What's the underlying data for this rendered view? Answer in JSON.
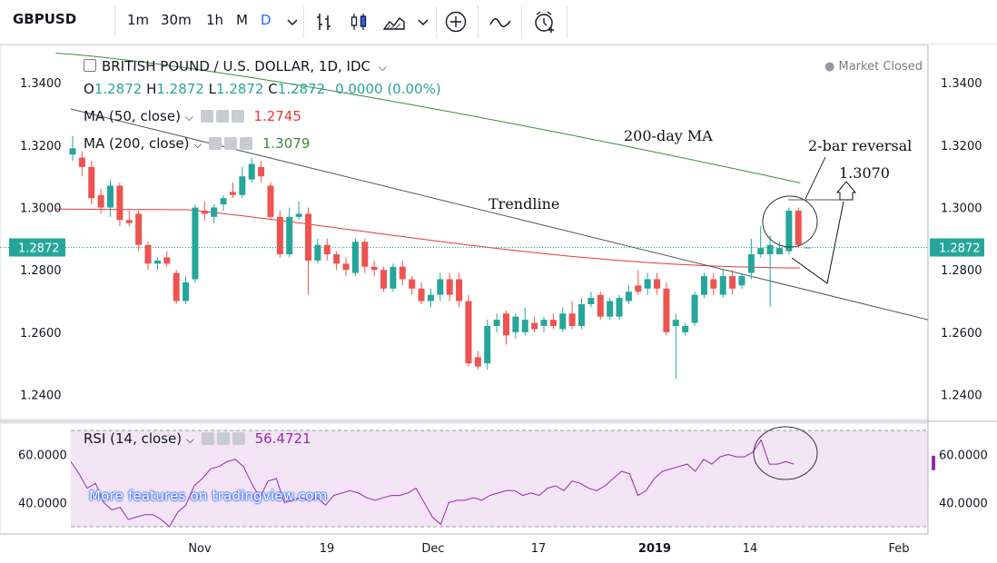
{
  "toolbar": {
    "symbol": "GBPUSD",
    "intervals": [
      "1m",
      "30m",
      "1h",
      "M",
      "D"
    ],
    "active_interval": "D",
    "icons": [
      "chevron-down-icon",
      "bar-style-icon",
      "candle-style-icon",
      "area-style-icon",
      "chevron-down-icon",
      "add-compare-icon",
      "indicators-icon",
      "alert-clock-icon"
    ]
  },
  "legend": {
    "title": "BRITISH POUND / U.S. DOLLAR, 1D, IDC",
    "o_label": "O",
    "o": "1.2872",
    "h_label": "H",
    "h": "1.2872",
    "l_label": "L",
    "l": "1.2872",
    "c_label": "C",
    "c": "1.2872",
    "change": "0.0000 (0.00%)",
    "ma50_label": "MA (50, close)",
    "ma50_value": "1.2745",
    "ma200_label": "MA (200, close)",
    "ma200_value": "1.3079",
    "rsi_label": "RSI (14, close)",
    "rsi_value": "56.4721",
    "status": "Market Closed",
    "watermark": "More features on tradingview.com"
  },
  "colors": {
    "up": "#26a69a",
    "down": "#ef5350",
    "ma50": "#e53935",
    "ma200": "#388e3c",
    "rsi": "#9c27b0",
    "rsi_band": "#f3e5f5",
    "price_tag": "#26a69a"
  },
  "chart_data": [
    {
      "type": "candlestick",
      "title": "BRITISH POUND / U.S. DOLLAR, 1D, IDC",
      "ylim": [
        1.232,
        1.352
      ],
      "y_ticks": [
        "1.2400",
        "1.2600",
        "1.2800",
        "1.3000",
        "1.3200",
        "1.3400"
      ],
      "x_ticks": [
        "Nov",
        "19",
        "Dec",
        "17",
        "2019",
        "14",
        "Feb"
      ],
      "current_price_label": "1.2872",
      "series": [
        {
          "name": "MA (50, close)",
          "y_start": 1.2995,
          "y_end": 1.2745
        },
        {
          "name": "MA (200, close)",
          "y_start": 1.3495,
          "y_end": 1.3079
        }
      ],
      "annotations": [
        "200-day MA",
        "Trendline",
        "2-bar reversal",
        "1.3070"
      ],
      "candles": [
        [
          1.317,
          1.319,
          1.323,
          1.315
        ],
        [
          1.316,
          1.313,
          1.318,
          1.31
        ],
        [
          1.313,
          1.303,
          1.315,
          1.301
        ],
        [
          1.304,
          1.3,
          1.306,
          1.298
        ],
        [
          1.3,
          1.307,
          1.309,
          1.297
        ],
        [
          1.307,
          1.296,
          1.308,
          1.294
        ],
        [
          1.296,
          1.295,
          1.299,
          1.294
        ],
        [
          1.298,
          1.288,
          1.299,
          1.286
        ],
        [
          1.288,
          1.282,
          1.289,
          1.28
        ],
        [
          1.282,
          1.283,
          1.284,
          1.28
        ],
        [
          1.284,
          1.282,
          1.286,
          1.281
        ],
        [
          1.279,
          1.27,
          1.28,
          1.269
        ],
        [
          1.27,
          1.276,
          1.278,
          1.269
        ],
        [
          1.277,
          1.3,
          1.301,
          1.276
        ],
        [
          1.299,
          1.298,
          1.302,
          1.296
        ],
        [
          1.297,
          1.3,
          1.301,
          1.295
        ],
        [
          1.301,
          1.303,
          1.304,
          1.299
        ],
        [
          1.305,
          1.304,
          1.308,
          1.303
        ],
        [
          1.304,
          1.31,
          1.313,
          1.303
        ],
        [
          1.309,
          1.314,
          1.316,
          1.308
        ],
        [
          1.313,
          1.31,
          1.315,
          1.308
        ],
        [
          1.307,
          1.297,
          1.308,
          1.296
        ],
        [
          1.297,
          1.285,
          1.299,
          1.284
        ],
        [
          1.285,
          1.297,
          1.3,
          1.284
        ],
        [
          1.297,
          1.298,
          1.302,
          1.296
        ],
        [
          1.298,
          1.283,
          1.3,
          1.272
        ],
        [
          1.283,
          1.288,
          1.29,
          1.282
        ],
        [
          1.288,
          1.285,
          1.29,
          1.283
        ],
        [
          1.285,
          1.282,
          1.286,
          1.28
        ],
        [
          1.282,
          1.28,
          1.284,
          1.278
        ],
        [
          1.279,
          1.289,
          1.29,
          1.278
        ],
        [
          1.289,
          1.281,
          1.29,
          1.279
        ],
        [
          1.281,
          1.28,
          1.283,
          1.278
        ],
        [
          1.28,
          1.274,
          1.281,
          1.273
        ],
        [
          1.274,
          1.281,
          1.282,
          1.273
        ],
        [
          1.281,
          1.277,
          1.283,
          1.275
        ],
        [
          1.277,
          1.274,
          1.278,
          1.272
        ],
        [
          1.274,
          1.27,
          1.276,
          1.269
        ],
        [
          1.27,
          1.272,
          1.274,
          1.268
        ],
        [
          1.272,
          1.277,
          1.279,
          1.27
        ],
        [
          1.277,
          1.272,
          1.279,
          1.27
        ],
        [
          1.277,
          1.27,
          1.279,
          1.268
        ],
        [
          1.27,
          1.25,
          1.272,
          1.249
        ],
        [
          1.252,
          1.249,
          1.254,
          1.248
        ],
        [
          1.25,
          1.262,
          1.264,
          1.248
        ],
        [
          1.262,
          1.264,
          1.266,
          1.26
        ],
        [
          1.266,
          1.259,
          1.267,
          1.256
        ],
        [
          1.26,
          1.265,
          1.266,
          1.258
        ],
        [
          1.26,
          1.264,
          1.268,
          1.259
        ],
        [
          1.263,
          1.261,
          1.265,
          1.26
        ],
        [
          1.262,
          1.264,
          1.265,
          1.26
        ],
        [
          1.264,
          1.262,
          1.266,
          1.261
        ],
        [
          1.261,
          1.266,
          1.268,
          1.26
        ],
        [
          1.266,
          1.262,
          1.27,
          1.261
        ],
        [
          1.262,
          1.269,
          1.271,
          1.261
        ],
        [
          1.269,
          1.271,
          1.273,
          1.268
        ],
        [
          1.272,
          1.265,
          1.273,
          1.264
        ],
        [
          1.265,
          1.27,
          1.271,
          1.264
        ],
        [
          1.265,
          1.271,
          1.272,
          1.264
        ],
        [
          1.27,
          1.273,
          1.275,
          1.269
        ],
        [
          1.275,
          1.273,
          1.28,
          1.272
        ],
        [
          1.274,
          1.277,
          1.279,
          1.272
        ],
        [
          1.277,
          1.274,
          1.279,
          1.272
        ],
        [
          1.274,
          1.26,
          1.276,
          1.259
        ],
        [
          1.262,
          1.264,
          1.266,
          1.245
        ],
        [
          1.26,
          1.262,
          1.263,
          1.259
        ],
        [
          1.263,
          1.272,
          1.273,
          1.262
        ],
        [
          1.272,
          1.278,
          1.279,
          1.271
        ],
        [
          1.277,
          1.274,
          1.279,
          1.272
        ],
        [
          1.272,
          1.278,
          1.28,
          1.271
        ],
        [
          1.278,
          1.274,
          1.28,
          1.272
        ],
        [
          1.275,
          1.278,
          1.279,
          1.274
        ],
        [
          1.279,
          1.285,
          1.29,
          1.277
        ],
        [
          1.285,
          1.287,
          1.294,
          1.284
        ],
        [
          1.285,
          1.288,
          1.291,
          1.268
        ],
        [
          1.285,
          1.287,
          1.289,
          1.285
        ],
        [
          1.286,
          1.299,
          1.3,
          1.285
        ],
        [
          1.299,
          1.288,
          1.3,
          1.287
        ],
        [
          1.2872,
          1.2872,
          1.2872,
          1.2872
        ]
      ]
    },
    {
      "type": "line",
      "title": "RSI (14, close)",
      "ylim": [
        27,
        73
      ],
      "y_ticks": [
        "40.0000",
        "60.0000"
      ],
      "current_value": "56.4721",
      "values": [
        57,
        52,
        46,
        48,
        40,
        37,
        38,
        33,
        34,
        35,
        35,
        33,
        30,
        36,
        39,
        47,
        50,
        54,
        55,
        57,
        58,
        55,
        48,
        42,
        49,
        50,
        40,
        41,
        42,
        41,
        42,
        39,
        43,
        44,
        45,
        44,
        42,
        41,
        42,
        43,
        43,
        44,
        46,
        40,
        34,
        31,
        40,
        41,
        41,
        42,
        41,
        43,
        44,
        45,
        45,
        43,
        44,
        43,
        46,
        47,
        45,
        49,
        48,
        46,
        45,
        47,
        50,
        53,
        52,
        43,
        45,
        50,
        53,
        54,
        55,
        56,
        53,
        58,
        56,
        59,
        60,
        59,
        59,
        61,
        66,
        56,
        56,
        57,
        56
      ]
    }
  ]
}
